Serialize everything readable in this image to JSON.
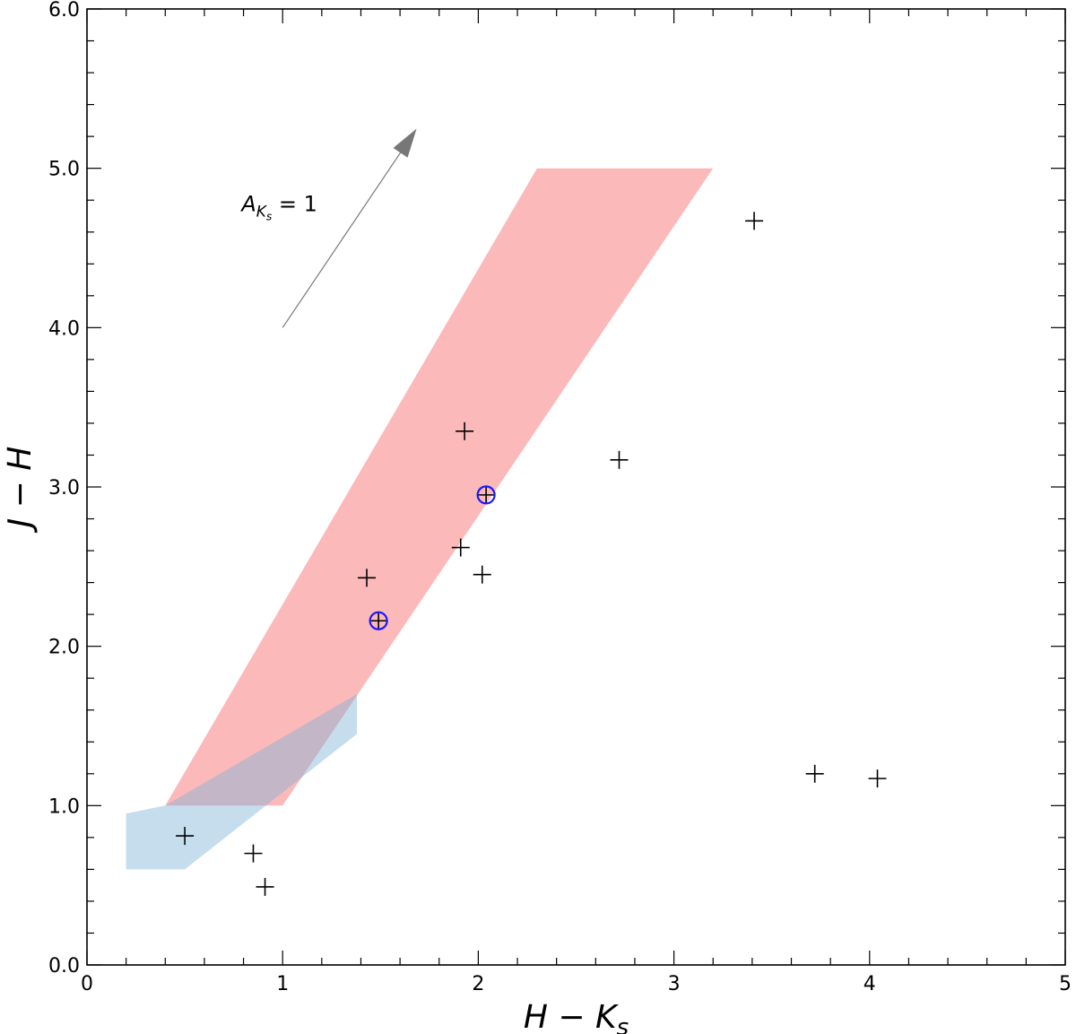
{
  "chart_data": {
    "type": "scatter",
    "xlabel": "H − K",
    "xlabel_sub": "s",
    "ylabel": "J − H",
    "xlim": [
      0,
      5
    ],
    "ylim": [
      0,
      6
    ],
    "xticks": [
      0,
      1,
      2,
      3,
      4,
      5
    ],
    "xtick_labels": [
      "0",
      "1",
      "2",
      "3",
      "4",
      "5"
    ],
    "yticks": [
      0,
      1,
      2,
      3,
      4,
      5,
      6
    ],
    "ytick_labels": [
      "0.0",
      "1.0",
      "2.0",
      "3.0",
      "4.0",
      "5.0",
      "6.0"
    ],
    "x_minor_step": 0.2,
    "y_minor_step": 0.2,
    "grid": false,
    "points": [
      {
        "x": 0.5,
        "y": 0.81
      },
      {
        "x": 0.85,
        "y": 0.7
      },
      {
        "x": 0.91,
        "y": 0.49
      },
      {
        "x": 1.43,
        "y": 2.43
      },
      {
        "x": 1.49,
        "y": 2.16
      },
      {
        "x": 1.91,
        "y": 2.62
      },
      {
        "x": 1.93,
        "y": 3.35
      },
      {
        "x": 2.02,
        "y": 2.45
      },
      {
        "x": 2.04,
        "y": 2.95
      },
      {
        "x": 2.72,
        "y": 3.17
      },
      {
        "x": 3.41,
        "y": 4.67
      },
      {
        "x": 3.72,
        "y": 1.2
      },
      {
        "x": 4.04,
        "y": 1.17
      }
    ],
    "circled_points": [
      {
        "x": 1.49,
        "y": 2.16
      },
      {
        "x": 2.04,
        "y": 2.95
      }
    ],
    "regions": [
      {
        "id": "red-band",
        "color": "#fa8080",
        "opacity": 0.55,
        "polygon": [
          [
            0.4,
            1.0
          ],
          [
            1.0,
            1.0
          ],
          [
            3.2,
            5.0
          ],
          [
            2.3,
            5.0
          ]
        ]
      },
      {
        "id": "blue-region",
        "color": "#7fb3d8",
        "opacity": 0.45,
        "polygon": [
          [
            0.2,
            0.6
          ],
          [
            0.5,
            0.6
          ],
          [
            1.38,
            1.45
          ],
          [
            1.38,
            1.7
          ],
          [
            0.4,
            1.0
          ],
          [
            0.2,
            0.95
          ]
        ]
      }
    ],
    "reddening_vector": {
      "from": [
        1.0,
        4.0
      ],
      "to": [
        1.68,
        5.24
      ],
      "label_main": "A",
      "label_sub1": "K",
      "label_sub2": "s",
      "label_value": " = 1",
      "color": "#777777"
    },
    "colors": {
      "marker": "#000000",
      "circle": "#1a1aff",
      "axis": "#000000"
    }
  }
}
